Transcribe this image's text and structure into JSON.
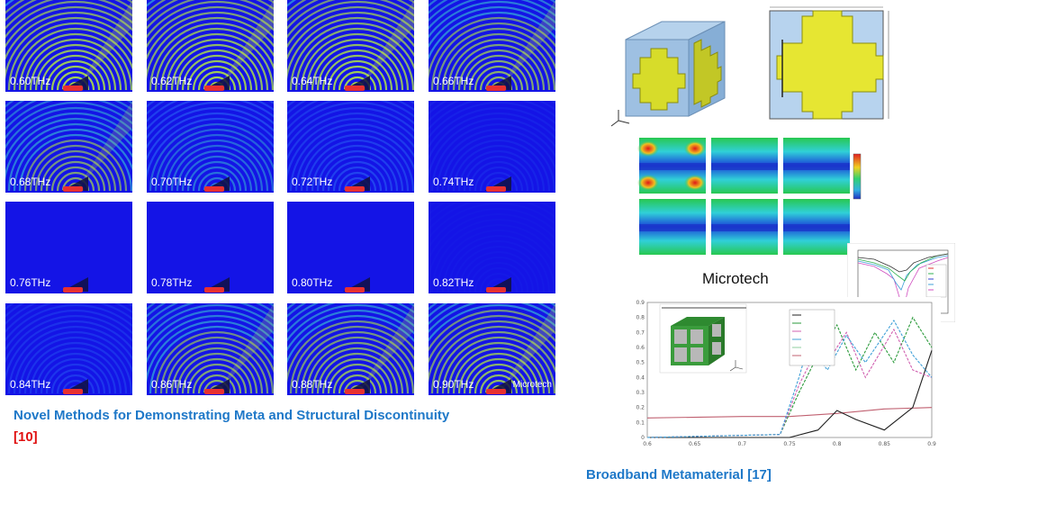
{
  "grid": {
    "tiles": [
      {
        "freq": "0.60THz",
        "intensity": 1.0
      },
      {
        "freq": "0.62THz",
        "intensity": 1.0
      },
      {
        "freq": "0.64THz",
        "intensity": 1.0
      },
      {
        "freq": "0.66THz",
        "intensity": 0.85
      },
      {
        "freq": "0.68THz",
        "intensity": 0.75
      },
      {
        "freq": "0.70THz",
        "intensity": 0.55
      },
      {
        "freq": "0.72THz",
        "intensity": 0.4
      },
      {
        "freq": "0.74THz",
        "intensity": 0.15
      },
      {
        "freq": "0.76THz",
        "intensity": 0.0
      },
      {
        "freq": "0.78THz",
        "intensity": 0.0
      },
      {
        "freq": "0.80THz",
        "intensity": 0.0
      },
      {
        "freq": "0.82THz",
        "intensity": 0.05
      },
      {
        "freq": "0.84THz",
        "intensity": 0.3
      },
      {
        "freq": "0.86THz",
        "intensity": 0.8
      },
      {
        "freq": "0.88THz",
        "intensity": 0.85
      },
      {
        "freq": "0.90THz",
        "intensity": 0.9
      }
    ],
    "watermark": "Microtech"
  },
  "captions": {
    "left_text": "Novel Methods for Demonstrating Meta and Structural Discontinuity",
    "left_ref": "[10]",
    "right_text": "Broadband Metamaterial [17]",
    "microtech": "Microtech"
  },
  "chart_data": {
    "type": "line",
    "xlim": [
      0.6,
      0.9
    ],
    "ylim": [
      0,
      0.9
    ],
    "x_ticks": [
      "0.6",
      "0.65",
      "0.7",
      "0.75",
      "0.8",
      "0.85",
      "0.9"
    ],
    "y_ticks": [
      "0",
      "0.1",
      "0.2",
      "0.3",
      "0.4",
      "0.5",
      "0.6",
      "0.7",
      "0.8",
      "0.9"
    ],
    "series": [
      {
        "color": "#c06070",
        "points": [
          [
            0.6,
            0.13
          ],
          [
            0.7,
            0.14
          ],
          [
            0.75,
            0.14
          ],
          [
            0.8,
            0.16
          ],
          [
            0.85,
            0.19
          ],
          [
            0.9,
            0.2
          ]
        ]
      },
      {
        "color": "#202020",
        "points": [
          [
            0.6,
            0.0
          ],
          [
            0.75,
            0.0
          ],
          [
            0.78,
            0.05
          ],
          [
            0.8,
            0.18
          ],
          [
            0.82,
            0.12
          ],
          [
            0.85,
            0.05
          ],
          [
            0.88,
            0.2
          ],
          [
            0.9,
            0.58
          ]
        ]
      },
      {
        "color": "#2a9a3a",
        "points": [
          [
            0.6,
            0.0
          ],
          [
            0.74,
            0.02
          ],
          [
            0.76,
            0.3
          ],
          [
            0.78,
            0.55
          ],
          [
            0.8,
            0.75
          ],
          [
            0.82,
            0.45
          ],
          [
            0.84,
            0.7
          ],
          [
            0.86,
            0.5
          ],
          [
            0.88,
            0.8
          ],
          [
            0.9,
            0.6
          ]
        ]
      },
      {
        "color": "#d060b0",
        "points": [
          [
            0.6,
            0.0
          ],
          [
            0.74,
            0.02
          ],
          [
            0.76,
            0.35
          ],
          [
            0.78,
            0.6
          ],
          [
            0.79,
            0.5
          ],
          [
            0.81,
            0.7
          ],
          [
            0.83,
            0.4
          ],
          [
            0.86,
            0.72
          ],
          [
            0.88,
            0.45
          ],
          [
            0.9,
            0.4
          ]
        ]
      },
      {
        "color": "#40a0d8",
        "points": [
          [
            0.6,
            0.0
          ],
          [
            0.74,
            0.02
          ],
          [
            0.76,
            0.4
          ],
          [
            0.77,
            0.62
          ],
          [
            0.79,
            0.45
          ],
          [
            0.81,
            0.68
          ],
          [
            0.83,
            0.5
          ],
          [
            0.86,
            0.78
          ],
          [
            0.88,
            0.55
          ],
          [
            0.9,
            0.4
          ]
        ]
      }
    ]
  }
}
